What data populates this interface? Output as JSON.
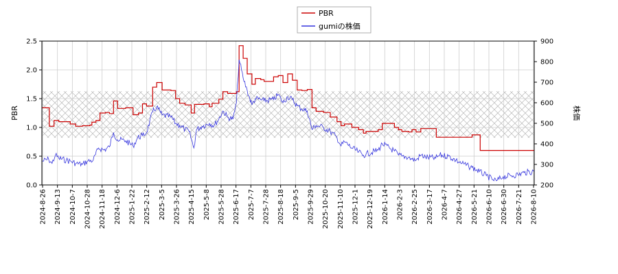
{
  "chart_data": {
    "type": "line",
    "grid": true,
    "legend_position": "top-center",
    "y_left": {
      "label": "PBR",
      "ylim": [
        0,
        2.5
      ],
      "ticks": [
        0.0,
        0.5,
        1.0,
        1.5,
        2.0,
        2.5
      ],
      "tick_labels": [
        "0.0",
        "0.5",
        "1.0",
        "1.5",
        "2.0",
        "2.5"
      ]
    },
    "y_right": {
      "label": "株価",
      "ylim": [
        200,
        900
      ],
      "ticks": [
        200,
        300,
        400,
        500,
        600,
        700,
        800,
        900
      ],
      "tick_labels": [
        "200",
        "300",
        "400",
        "500",
        "600",
        "700",
        "800",
        "900"
      ]
    },
    "x_axis": {
      "start": "2024-08-26",
      "end": "2026-08-25",
      "tick_labels": [
        "2024-8-26",
        "2024-9-13",
        "2024-10-7",
        "2024-10-28",
        "2024-11-18",
        "2024-12-6",
        "2025-1-22",
        "2025-2-12",
        "2025-3-5",
        "2025-3-26",
        "2025-4-15",
        "2025-5-8",
        "2025-5-28",
        "2025-6-17",
        "2025-7-7",
        "2025-7-28",
        "2025-8-18",
        "2025-9-5",
        "2025-9-29",
        "2025-10-20",
        "2025-11-10",
        "2025-12-1",
        "2025-12-19",
        "2026-1-14",
        "2026-2-3",
        "2026-2-25",
        "2026-3-17",
        "2026-4-7",
        "2026-4-27",
        "2026-5-21",
        "2026-6-10",
        "2026-6-30",
        "2026-7-21",
        "2026-8-10"
      ]
    },
    "band": {
      "axis": "left",
      "from": 0.82,
      "to": 1.63,
      "pattern": "crosshatch"
    },
    "series": [
      {
        "name": "PBR",
        "axis": "left",
        "color": "#cc0000",
        "points": [
          [
            "2024-08-26",
            1.34
          ],
          [
            "2024-09-05",
            1.34
          ],
          [
            "2024-09-06",
            1.02
          ],
          [
            "2024-09-12",
            1.02
          ],
          [
            "2024-09-13",
            1.12
          ],
          [
            "2024-09-20",
            1.1
          ],
          [
            "2024-10-01",
            1.1
          ],
          [
            "2024-10-07",
            1.06
          ],
          [
            "2024-10-15",
            1.02
          ],
          [
            "2024-10-25",
            1.03
          ],
          [
            "2024-11-05",
            1.04
          ],
          [
            "2024-11-08",
            1.09
          ],
          [
            "2024-11-14",
            1.12
          ],
          [
            "2024-11-20",
            1.25
          ],
          [
            "2024-11-28",
            1.26
          ],
          [
            "2024-12-04",
            1.24
          ],
          [
            "2024-12-10",
            1.46
          ],
          [
            "2024-12-16",
            1.33
          ],
          [
            "2024-12-28",
            1.34
          ],
          [
            "2025-01-08",
            1.22
          ],
          [
            "2025-01-16",
            1.25
          ],
          [
            "2025-01-22",
            1.41
          ],
          [
            "2025-01-28",
            1.37
          ],
          [
            "2025-02-06",
            1.7
          ],
          [
            "2025-02-12",
            1.78
          ],
          [
            "2025-02-20",
            1.65
          ],
          [
            "2025-03-05",
            1.64
          ],
          [
            "2025-03-12",
            1.5
          ],
          [
            "2025-03-18",
            1.42
          ],
          [
            "2025-03-26",
            1.39
          ],
          [
            "2025-04-04",
            1.25
          ],
          [
            "2025-04-09",
            1.4
          ],
          [
            "2025-04-23",
            1.41
          ],
          [
            "2025-05-01",
            1.36
          ],
          [
            "2025-05-05",
            1.42
          ],
          [
            "2025-05-15",
            1.49
          ],
          [
            "2025-05-21",
            1.62
          ],
          [
            "2025-05-28",
            1.59
          ],
          [
            "2025-06-10",
            1.62
          ],
          [
            "2025-06-14",
            2.42
          ],
          [
            "2025-06-20",
            2.2
          ],
          [
            "2025-06-26",
            1.93
          ],
          [
            "2025-07-03",
            1.75
          ],
          [
            "2025-07-08",
            1.85
          ],
          [
            "2025-07-16",
            1.83
          ],
          [
            "2025-07-21",
            1.8
          ],
          [
            "2025-08-04",
            1.88
          ],
          [
            "2025-08-11",
            1.9
          ],
          [
            "2025-08-18",
            1.78
          ],
          [
            "2025-08-25",
            1.93
          ],
          [
            "2025-09-01",
            1.82
          ],
          [
            "2025-09-08",
            1.65
          ],
          [
            "2025-09-15",
            1.64
          ],
          [
            "2025-09-23",
            1.66
          ],
          [
            "2025-09-30",
            1.34
          ],
          [
            "2025-10-06",
            1.28
          ],
          [
            "2025-10-17",
            1.26
          ],
          [
            "2025-10-27",
            1.18
          ],
          [
            "2025-11-06",
            1.1
          ],
          [
            "2025-11-12",
            1.03
          ],
          [
            "2025-11-17",
            1.06
          ],
          [
            "2025-11-28",
            1.0
          ],
          [
            "2025-12-08",
            0.96
          ],
          [
            "2025-12-15",
            0.9
          ],
          [
            "2025-12-19",
            0.93
          ],
          [
            "2026-01-06",
            0.96
          ],
          [
            "2026-01-12",
            1.07
          ],
          [
            "2026-01-30",
            1.0
          ],
          [
            "2026-02-05",
            0.96
          ],
          [
            "2026-02-10",
            0.93
          ],
          [
            "2026-02-20",
            0.92
          ],
          [
            "2026-02-25",
            0.96
          ],
          [
            "2026-03-03",
            0.92
          ],
          [
            "2026-03-10",
            0.98
          ],
          [
            "2026-03-17",
            0.98
          ],
          [
            "2026-04-01",
            0.98
          ],
          [
            "2026-04-02",
            0.83
          ],
          [
            "2026-04-20",
            0.83
          ],
          [
            "2026-05-10",
            0.83
          ],
          [
            "2026-05-20",
            0.83
          ],
          [
            "2026-05-25",
            0.87
          ],
          [
            "2026-06-05",
            0.87
          ],
          [
            "2026-06-06",
            0.6
          ],
          [
            "2026-06-20",
            0.6
          ],
          [
            "2026-07-10",
            0.6
          ],
          [
            "2026-08-25",
            0.6
          ]
        ]
      },
      {
        "name": "gumiの株価",
        "axis": "right",
        "color": "#3333dd",
        "points": [
          [
            "2024-08-26",
            315
          ],
          [
            "2024-09-05",
            325
          ],
          [
            "2024-09-10",
            305
          ],
          [
            "2024-09-15",
            345
          ],
          [
            "2024-09-20",
            330
          ],
          [
            "2024-10-01",
            320
          ],
          [
            "2024-10-08",
            315
          ],
          [
            "2024-10-15",
            305
          ],
          [
            "2024-10-25",
            300
          ],
          [
            "2024-11-01",
            315
          ],
          [
            "2024-11-10",
            320
          ],
          [
            "2024-11-18",
            380
          ],
          [
            "2024-11-26",
            370
          ],
          [
            "2024-12-04",
            385
          ],
          [
            "2024-12-10",
            455
          ],
          [
            "2024-12-16",
            420
          ],
          [
            "2024-12-28",
            415
          ],
          [
            "2025-01-08",
            390
          ],
          [
            "2025-01-15",
            430
          ],
          [
            "2025-01-22",
            440
          ],
          [
            "2025-01-28",
            455
          ],
          [
            "2025-02-06",
            555
          ],
          [
            "2025-02-12",
            580
          ],
          [
            "2025-02-20",
            540
          ],
          [
            "2025-03-05",
            530
          ],
          [
            "2025-03-12",
            500
          ],
          [
            "2025-03-18",
            490
          ],
          [
            "2025-03-26",
            470
          ],
          [
            "2025-04-01",
            460
          ],
          [
            "2025-04-08",
            380
          ],
          [
            "2025-04-12",
            470
          ],
          [
            "2025-04-20",
            485
          ],
          [
            "2025-05-01",
            500
          ],
          [
            "2025-05-08",
            490
          ],
          [
            "2025-05-15",
            520
          ],
          [
            "2025-05-21",
            560
          ],
          [
            "2025-05-28",
            530
          ],
          [
            "2025-06-05",
            520
          ],
          [
            "2025-06-10",
            600
          ],
          [
            "2025-06-14",
            810
          ],
          [
            "2025-06-20",
            720
          ],
          [
            "2025-06-26",
            660
          ],
          [
            "2025-07-03",
            590
          ],
          [
            "2025-07-08",
            620
          ],
          [
            "2025-07-16",
            615
          ],
          [
            "2025-07-21",
            610
          ],
          [
            "2025-08-04",
            615
          ],
          [
            "2025-08-11",
            640
          ],
          [
            "2025-08-18",
            600
          ],
          [
            "2025-08-25",
            630
          ],
          [
            "2025-09-01",
            615
          ],
          [
            "2025-09-08",
            585
          ],
          [
            "2025-09-15",
            570
          ],
          [
            "2025-09-23",
            560
          ],
          [
            "2025-09-30",
            470
          ],
          [
            "2025-10-06",
            490
          ],
          [
            "2025-10-17",
            480
          ],
          [
            "2025-10-27",
            460
          ],
          [
            "2025-11-06",
            430
          ],
          [
            "2025-11-12",
            390
          ],
          [
            "2025-11-17",
            410
          ],
          [
            "2025-11-28",
            380
          ],
          [
            "2025-12-08",
            360
          ],
          [
            "2025-12-15",
            345
          ],
          [
            "2025-12-19",
            350
          ],
          [
            "2026-01-06",
            370
          ],
          [
            "2026-01-12",
            400
          ],
          [
            "2026-01-30",
            365
          ],
          [
            "2026-02-05",
            345
          ],
          [
            "2026-02-10",
            340
          ],
          [
            "2026-02-20",
            335
          ],
          [
            "2026-02-25",
            325
          ],
          [
            "2026-03-03",
            320
          ],
          [
            "2026-03-10",
            345
          ],
          [
            "2026-03-17",
            335
          ],
          [
            "2026-04-01",
            330
          ],
          [
            "2026-04-07",
            345
          ],
          [
            "2026-04-20",
            340
          ],
          [
            "2026-05-01",
            320
          ],
          [
            "2026-05-10",
            305
          ],
          [
            "2026-05-20",
            290
          ],
          [
            "2026-05-25",
            285
          ],
          [
            "2026-06-05",
            265
          ],
          [
            "2026-06-15",
            245
          ],
          [
            "2026-06-25",
            225
          ],
          [
            "2026-06-30",
            220
          ],
          [
            "2026-07-10",
            240
          ],
          [
            "2026-07-21",
            245
          ],
          [
            "2026-08-01",
            250
          ],
          [
            "2026-08-10",
            260
          ],
          [
            "2026-08-25",
            265
          ]
        ]
      }
    ]
  }
}
